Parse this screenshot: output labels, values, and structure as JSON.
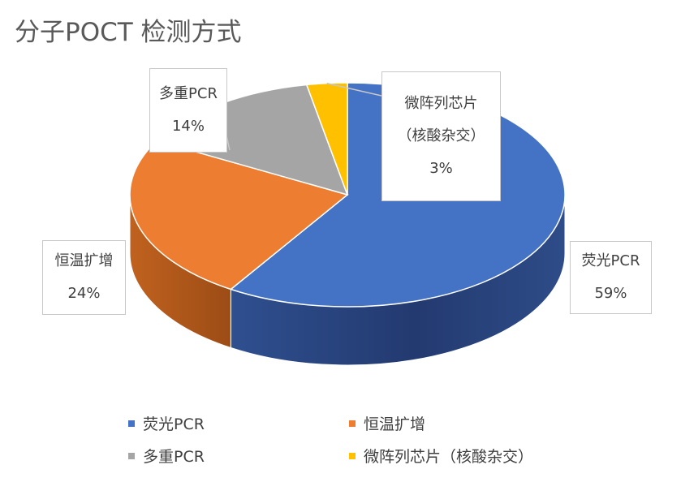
{
  "title": "分子POCT 检测方式",
  "chart_data": {
    "type": "pie",
    "title": "分子POCT 检测方式",
    "legend_position": "bottom",
    "slices": [
      {
        "label": "荧光PCR",
        "value": 59,
        "value_label": "59%",
        "color": "#4472c4"
      },
      {
        "label": "恒温扩增",
        "value": 24,
        "value_label": "24%",
        "color": "#ed7d31"
      },
      {
        "label": "多重PCR",
        "value": 14,
        "value_label": "14%",
        "color": "#a5a5a5"
      },
      {
        "label": "微阵列芯片（核酸杂交）",
        "value": 3,
        "value_label": "3%",
        "color": "#ffc000"
      }
    ]
  },
  "labels": {
    "fluor": {
      "line1": "荧光PCR",
      "line2": "59%"
    },
    "isothermal": {
      "line1": "恒温扩增",
      "line2": "24%"
    },
    "multiplex": {
      "line1": "多重PCR",
      "line2": "14%"
    },
    "microarray": {
      "line1": "微阵列芯片",
      "line2": "（核酸杂交）",
      "line3": "3%"
    }
  },
  "legend": {
    "items": [
      {
        "label": "荧光PCR",
        "color": "#4472c4"
      },
      {
        "label": "恒温扩增",
        "color": "#ed7d31"
      },
      {
        "label": "多重PCR",
        "color": "#a5a5a5"
      },
      {
        "label": "微阵列芯片（核酸杂交）",
        "color": "#ffc000"
      }
    ]
  }
}
